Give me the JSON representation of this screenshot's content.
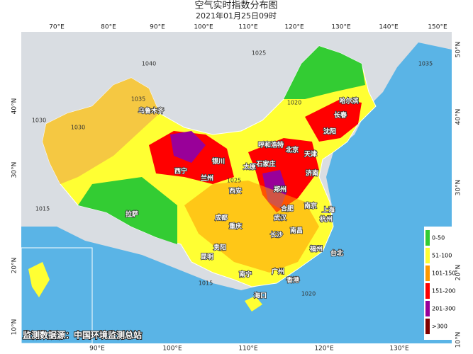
{
  "header": {
    "title": "空气实时指数分布图",
    "subtitle": "2021年01月25日09时"
  },
  "longitude_top": [
    "70°E",
    "80°E",
    "90°E",
    "100°E",
    "110°E",
    "120°E",
    "130°E",
    "140°E",
    "150°E"
  ],
  "longitude_bottom": [
    "90°E",
    "100°E",
    "110°E",
    "120°E",
    "130°E"
  ],
  "latitude_left": [
    "40°N",
    "30°N",
    "20°N",
    "10°N"
  ],
  "latitude_right": [
    "50°N",
    "40°N",
    "30°N",
    "20°N",
    "10°N"
  ],
  "cities": [
    "乌鲁木齐",
    "西宁",
    "兰州",
    "银川",
    "呼和浩特",
    "北京",
    "天津",
    "石家庄",
    "太原",
    "济南",
    "郑州",
    "西安",
    "南京",
    "合肥",
    "上海",
    "杭州",
    "武汉",
    "成都",
    "重庆",
    "长沙",
    "南昌",
    "福州",
    "台北",
    "贵阳",
    "昆明",
    "南宁",
    "广州",
    "香港",
    "海口",
    "拉萨",
    "沈阳",
    "长春",
    "哈尔滨"
  ],
  "isobars": [
    "1040",
    "1035",
    "1030",
    "1025",
    "1020",
    "1015",
    "1030",
    "1025",
    "1020",
    "1015",
    "1035"
  ],
  "legend": [
    {
      "label": "0-50",
      "color": "#33cc33"
    },
    {
      "label": "51-100",
      "color": "#ffff33"
    },
    {
      "label": "101-150",
      "color": "#ff9900"
    },
    {
      "label": "151-200",
      "color": "#ff0000"
    },
    {
      "label": "201-300",
      "color": "#990099"
    },
    {
      "label": ">300",
      "color": "#800000"
    }
  ],
  "source": "监测数据源：中国环境监测总站"
}
